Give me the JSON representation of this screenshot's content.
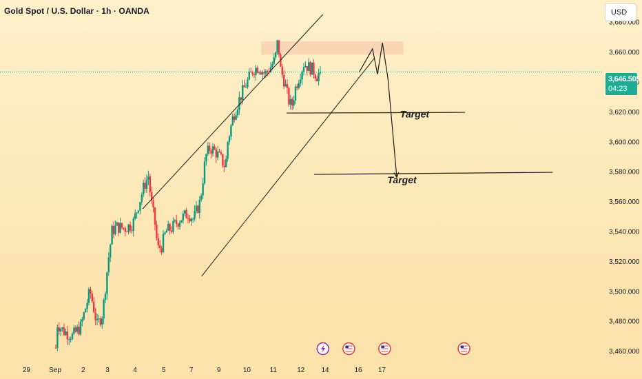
{
  "header": {
    "title": "Gold Spot / U.S. Dollar · 1h · OANDA",
    "currency": "USD"
  },
  "price_tag": {
    "price": "3,646.505",
    "countdown": "04:23"
  },
  "colors": {
    "up": "#089981",
    "down": "#f23645",
    "line": "#1c1c1c",
    "zone": "#f7cfae",
    "price_line": "#089981"
  },
  "chart_data": {
    "type": "candlestick",
    "symbol": "XAUUSD",
    "interval": "1h",
    "ylim": [
      3455,
      3690
    ],
    "y_ticks": [
      "3,460.000",
      "3,480.000",
      "3,500.000",
      "3,520.000",
      "3,540.000",
      "3,560.000",
      "3,580.000",
      "3,600.000",
      "3,620.000",
      "3,640.000",
      "3,660.000",
      "3,680.000"
    ],
    "y_tick_values": [
      3460,
      3480,
      3500,
      3520,
      3540,
      3560,
      3580,
      3600,
      3620,
      3640,
      3660,
      3680
    ],
    "x_ticks": [
      "29",
      "Sep",
      "2",
      "3",
      "4",
      "5",
      "7",
      "9",
      "10",
      "11",
      "12",
      "14",
      "16",
      "17"
    ],
    "x_tick_index": [
      -52,
      0,
      51,
      95,
      145,
      197,
      247,
      297,
      348,
      396,
      446,
      490,
      550,
      593
    ],
    "current_price": 3646.505,
    "path": [
      [
        0,
        3462
      ],
      [
        3,
        3478
      ],
      [
        15,
        3473
      ],
      [
        30,
        3470
      ],
      [
        45,
        3476
      ],
      [
        55,
        3490
      ],
      [
        62,
        3500
      ],
      [
        68,
        3490
      ],
      [
        75,
        3477
      ],
      [
        85,
        3485
      ],
      [
        95,
        3520
      ],
      [
        102,
        3540
      ],
      [
        110,
        3543
      ],
      [
        125,
        3542
      ],
      [
        140,
        3545
      ],
      [
        152,
        3560
      ],
      [
        160,
        3570
      ],
      [
        168,
        3577
      ],
      [
        173,
        3560
      ],
      [
        180,
        3545
      ],
      [
        185,
        3528
      ],
      [
        192,
        3530
      ],
      [
        200,
        3540
      ],
      [
        210,
        3542
      ],
      [
        225,
        3548
      ],
      [
        240,
        3552
      ],
      [
        250,
        3548
      ],
      [
        262,
        3560
      ],
      [
        272,
        3590
      ],
      [
        280,
        3596
      ],
      [
        290,
        3593
      ],
      [
        300,
        3588
      ],
      [
        308,
        3583
      ],
      [
        312,
        3600
      ],
      [
        322,
        3617
      ],
      [
        335,
        3630
      ],
      [
        345,
        3638
      ],
      [
        358,
        3648
      ],
      [
        368,
        3650
      ],
      [
        380,
        3645
      ],
      [
        390,
        3650
      ],
      [
        398,
        3655
      ],
      [
        403,
        3668
      ],
      [
        408,
        3648
      ],
      [
        415,
        3640
      ],
      [
        422,
        3628
      ],
      [
        428,
        3623
      ],
      [
        435,
        3636
      ],
      [
        443,
        3645
      ],
      [
        450,
        3652
      ],
      [
        458,
        3650
      ],
      [
        466,
        3648
      ],
      [
        474,
        3644
      ],
      [
        480,
        3646.5
      ]
    ],
    "zone": {
      "from_index": 374,
      "to_index": 632,
      "low": 3658,
      "high": 3667
    },
    "channel_upper": [
      [
        159,
        3555
      ],
      [
        486,
        3685
      ]
    ],
    "channel_lower": [
      [
        266,
        3510
      ],
      [
        580,
        3656
      ]
    ],
    "support_lines": [
      {
        "from_index": 420,
        "to_index": 744,
        "value": 3619
      },
      {
        "from_index": 470,
        "to_index": 903,
        "value": 3578
      }
    ],
    "projection_path": [
      [
        552,
        3646.505
      ],
      [
        576,
        3662
      ],
      [
        585,
        3645
      ],
      [
        594,
        3666
      ],
      [
        604,
        3642
      ],
      [
        620,
        3576
      ]
    ],
    "annotations": [
      {
        "text": "Target",
        "index": 626,
        "value": 3616
      },
      {
        "text": "Target",
        "index": 603,
        "value": 3572
      }
    ],
    "events": [
      {
        "icon": "lightning-event-icon",
        "index": 486
      },
      {
        "icon": "us-flag-event-icon",
        "index": 533
      },
      {
        "icon": "us-flag-event-icon",
        "index": 598
      },
      {
        "icon": "us-flag-event-icon",
        "index": 742
      }
    ]
  }
}
